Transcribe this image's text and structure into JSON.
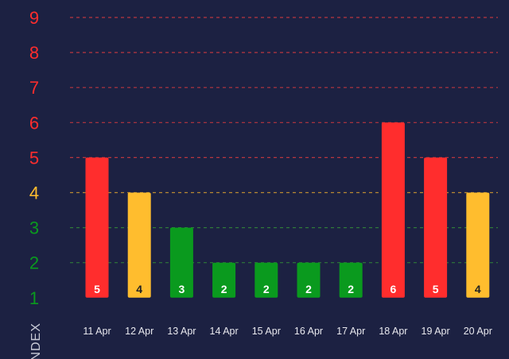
{
  "chart_data": {
    "type": "bar",
    "ylabel": "INDEX",
    "ylim": [
      1,
      9
    ],
    "yticks": [
      1,
      2,
      3,
      4,
      5,
      6,
      7,
      8,
      9
    ],
    "grid": true,
    "categories": [
      "11 Apr",
      "12 Apr",
      "13 Apr",
      "14 Apr",
      "15 Apr",
      "16 Apr",
      "17 Apr",
      "18 Apr",
      "19 Apr",
      "20 Apr"
    ],
    "values": [
      5,
      4,
      3,
      2,
      2,
      2,
      2,
      6,
      5,
      4
    ],
    "colors": {
      "high": "#ff2d2d",
      "moderate": "#ffbd2e",
      "low": "#0a9a1e",
      "high_grid": "#b8363f",
      "moderate_grid": "#b88a32",
      "low_grid": "#2f7a3a",
      "background": "#1c2142"
    }
  }
}
